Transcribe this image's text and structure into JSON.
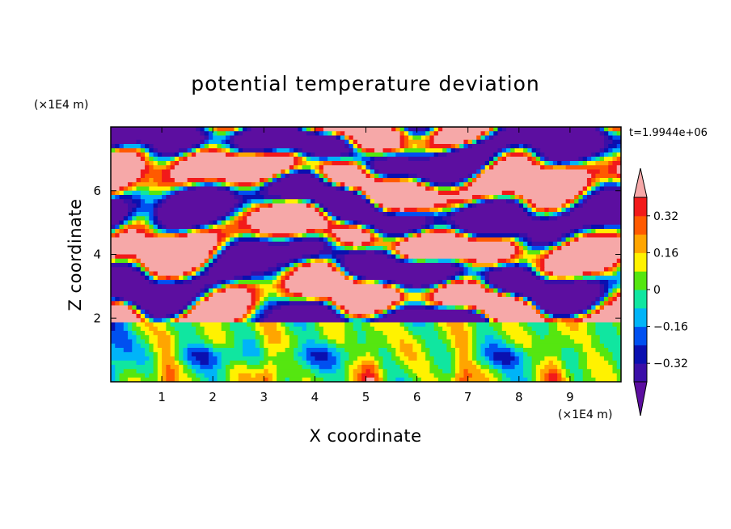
{
  "chart_data": {
    "type": "heatmap",
    "title": "potential temperature deviation",
    "xlabel": "X coordinate",
    "ylabel": "Z coordinate",
    "x_unit": "(×1E4 m)",
    "y_unit": "(×1E4 m)",
    "time_label": "t=1.9944e+06",
    "xlim": [
      0,
      10
    ],
    "ylim": [
      0,
      8
    ],
    "x_ticks": [
      "1",
      "2",
      "3",
      "4",
      "5",
      "6",
      "7",
      "8",
      "9"
    ],
    "y_ticks": [
      "2",
      "4",
      "6"
    ],
    "x_tick_values": [
      1,
      2,
      3,
      4,
      5,
      6,
      7,
      8,
      9
    ],
    "y_tick_values": [
      2,
      4,
      6
    ],
    "grid": false,
    "colorbar": {
      "placement": "right",
      "levels": [
        -0.4,
        -0.32,
        -0.24,
        -0.16,
        -0.08,
        0,
        0.08,
        0.16,
        0.24,
        0.32,
        0.4
      ],
      "colors": [
        "#5c0ea0",
        "#3a0fa8",
        "#0a10b0",
        "#0050f0",
        "#00b4f8",
        "#10e6a0",
        "#55e610",
        "#fff200",
        "#ffa500",
        "#ff5a00",
        "#f21a1a",
        "#f6a8a8"
      ],
      "labels": [
        "0.32",
        "0.16",
        "0",
        "−0.16",
        "−0.32"
      ],
      "label_values": [
        0.32,
        0.16,
        0,
        -0.16,
        -0.32
      ],
      "extend": "both"
    }
  }
}
